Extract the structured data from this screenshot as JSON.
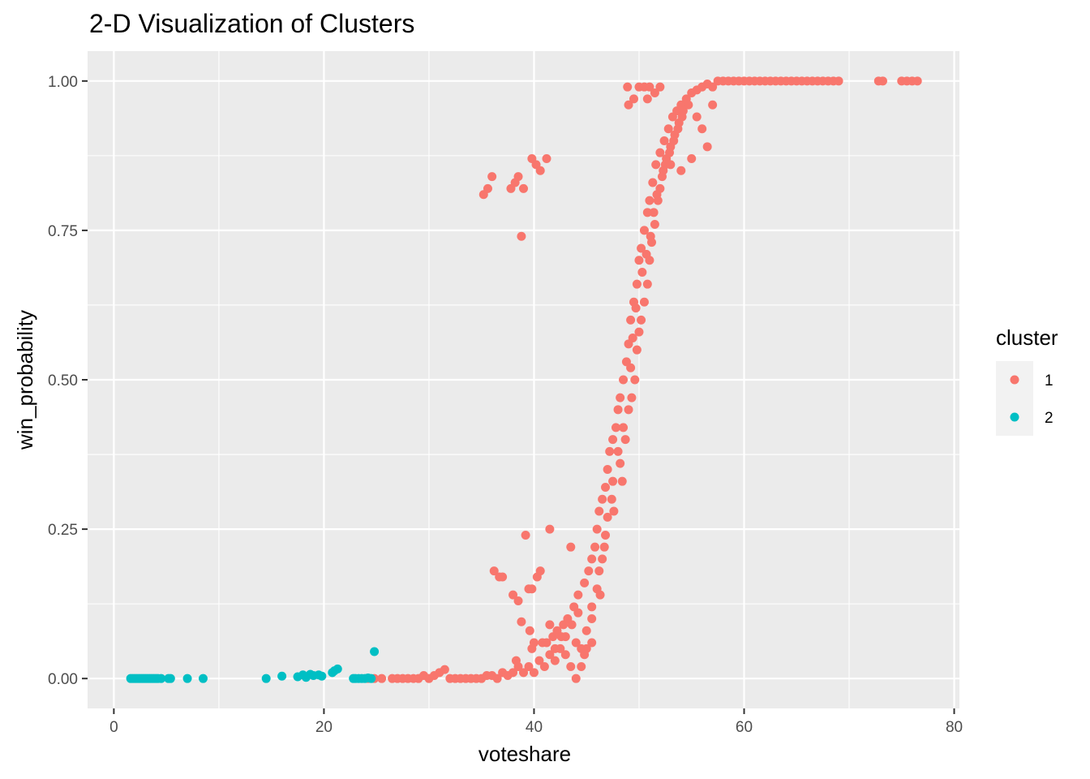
{
  "chart_data": {
    "type": "scatter",
    "title": "2-D Visualization of Clusters",
    "xlabel": "voteshare",
    "ylabel": "win_probability",
    "xlim": [
      -2.5,
      80.5
    ],
    "ylim": [
      -0.05,
      1.05
    ],
    "x_ticks": [
      0,
      20,
      40,
      60,
      80
    ],
    "x_tick_labels": [
      "0",
      "20",
      "40",
      "60",
      "80"
    ],
    "y_ticks": [
      0,
      0.25,
      0.5,
      0.75,
      1.0
    ],
    "y_tick_labels": [
      "0.00",
      "0.25",
      "0.50",
      "0.75",
      "1.00"
    ],
    "grid": true,
    "legend": {
      "title": "cluster",
      "position": "right"
    },
    "series": [
      {
        "name": "1",
        "color": "#F8766D",
        "points": [
          [
            24.2,
            0.0
          ],
          [
            24.8,
            0.0
          ],
          [
            25.5,
            0.0
          ],
          [
            26.5,
            0.0
          ],
          [
            27.0,
            0.0
          ],
          [
            27.5,
            0.0
          ],
          [
            28.0,
            0.0
          ],
          [
            28.5,
            0.0
          ],
          [
            29.0,
            0.0
          ],
          [
            29.5,
            0.005
          ],
          [
            30.0,
            0.0
          ],
          [
            30.5,
            0.005
          ],
          [
            31.0,
            0.01
          ],
          [
            31.5,
            0.015
          ],
          [
            32.0,
            0.0
          ],
          [
            32.5,
            0.0
          ],
          [
            33.0,
            0.0
          ],
          [
            33.5,
            0.0
          ],
          [
            34.0,
            0.0
          ],
          [
            34.5,
            0.0
          ],
          [
            35.0,
            0.0
          ],
          [
            35.5,
            0.005
          ],
          [
            36.0,
            0.005
          ],
          [
            36.5,
            0.0
          ],
          [
            37.0,
            0.01
          ],
          [
            37.5,
            0.005
          ],
          [
            38.0,
            0.01
          ],
          [
            38.5,
            0.02
          ],
          [
            39.0,
            0.01
          ],
          [
            39.5,
            0.02
          ],
          [
            40.0,
            0.01
          ],
          [
            40.5,
            0.03
          ],
          [
            41.0,
            0.02
          ],
          [
            41.5,
            0.04
          ],
          [
            42.0,
            0.03
          ],
          [
            42.5,
            0.05
          ],
          [
            43.0,
            0.04
          ],
          [
            43.5,
            0.02
          ],
          [
            44.0,
            0.06
          ],
          [
            44.5,
            0.05
          ],
          [
            45.0,
            0.08
          ],
          [
            38.3,
            0.03
          ],
          [
            39.8,
            0.05
          ],
          [
            40.8,
            0.06
          ],
          [
            41.8,
            0.07
          ],
          [
            42.8,
            0.09
          ],
          [
            43.2,
            0.1
          ],
          [
            43.8,
            0.12
          ],
          [
            44.2,
            0.14
          ],
          [
            44.8,
            0.16
          ],
          [
            45.2,
            0.18
          ],
          [
            45.5,
            0.2
          ],
          [
            45.8,
            0.22
          ],
          [
            46.0,
            0.25
          ],
          [
            46.2,
            0.28
          ],
          [
            46.5,
            0.3
          ],
          [
            46.8,
            0.32
          ],
          [
            47.0,
            0.35
          ],
          [
            47.2,
            0.38
          ],
          [
            47.5,
            0.4
          ],
          [
            47.8,
            0.42
          ],
          [
            48.0,
            0.45
          ],
          [
            48.2,
            0.47
          ],
          [
            48.5,
            0.5
          ],
          [
            48.8,
            0.53
          ],
          [
            49.0,
            0.56
          ],
          [
            49.2,
            0.6
          ],
          [
            49.5,
            0.63
          ],
          [
            49.8,
            0.66
          ],
          [
            50.0,
            0.7
          ],
          [
            50.2,
            0.72
          ],
          [
            50.5,
            0.75
          ],
          [
            50.8,
            0.78
          ],
          [
            51.0,
            0.8
          ],
          [
            51.3,
            0.83
          ],
          [
            51.6,
            0.86
          ],
          [
            52.0,
            0.88
          ],
          [
            52.4,
            0.9
          ],
          [
            52.8,
            0.92
          ],
          [
            53.2,
            0.94
          ],
          [
            53.6,
            0.95
          ],
          [
            54.0,
            0.96
          ],
          [
            54.5,
            0.97
          ],
          [
            55.0,
            0.98
          ],
          [
            55.5,
            0.985
          ],
          [
            56.0,
            0.99
          ],
          [
            56.5,
            0.995
          ],
          [
            57.0,
            0.99
          ],
          [
            57.5,
            1.0
          ],
          [
            58.0,
            1.0
          ],
          [
            58.5,
            1.0
          ],
          [
            59.0,
            1.0
          ],
          [
            59.5,
            1.0
          ],
          [
            60.0,
            1.0
          ],
          [
            60.5,
            1.0
          ],
          [
            61.0,
            1.0
          ],
          [
            61.5,
            1.0
          ],
          [
            62.0,
            1.0
          ],
          [
            62.5,
            1.0
          ],
          [
            63.0,
            1.0
          ],
          [
            63.5,
            1.0
          ],
          [
            64.0,
            1.0
          ],
          [
            64.5,
            1.0
          ],
          [
            65.0,
            1.0
          ],
          [
            65.5,
            1.0
          ],
          [
            66.0,
            1.0
          ],
          [
            66.5,
            1.0
          ],
          [
            67.0,
            1.0
          ],
          [
            67.5,
            1.0
          ],
          [
            68.0,
            1.0
          ],
          [
            68.5,
            1.0
          ],
          [
            69.0,
            1.0
          ],
          [
            72.8,
            1.0
          ],
          [
            73.2,
            1.0
          ],
          [
            75.0,
            1.0
          ],
          [
            75.5,
            1.0
          ],
          [
            76.0,
            1.0
          ],
          [
            76.5,
            1.0
          ],
          [
            44.0,
            0.0
          ],
          [
            44.5,
            0.02
          ],
          [
            45.0,
            0.05
          ],
          [
            45.5,
            0.1
          ],
          [
            46.0,
            0.15
          ],
          [
            46.5,
            0.2
          ],
          [
            47.0,
            0.27
          ],
          [
            47.5,
            0.33
          ],
          [
            48.0,
            0.38
          ],
          [
            48.5,
            0.42
          ],
          [
            49.0,
            0.45
          ],
          [
            49.3,
            0.47
          ],
          [
            49.6,
            0.5
          ],
          [
            49.8,
            0.55
          ],
          [
            50.0,
            0.58
          ],
          [
            50.2,
            0.6
          ],
          [
            50.5,
            0.63
          ],
          [
            50.8,
            0.66
          ],
          [
            51.0,
            0.7
          ],
          [
            51.2,
            0.73
          ],
          [
            51.5,
            0.76
          ],
          [
            51.8,
            0.8
          ],
          [
            52.0,
            0.82
          ],
          [
            52.3,
            0.85
          ],
          [
            52.6,
            0.87
          ],
          [
            53.0,
            0.89
          ],
          [
            53.4,
            0.91
          ],
          [
            53.8,
            0.93
          ],
          [
            54.2,
            0.95
          ],
          [
            54.7,
            0.96
          ],
          [
            45.5,
            0.12
          ],
          [
            46.2,
            0.18
          ],
          [
            46.8,
            0.24
          ],
          [
            47.4,
            0.3
          ],
          [
            48.2,
            0.36
          ],
          [
            48.7,
            0.4
          ],
          [
            49.2,
            0.52
          ],
          [
            49.4,
            0.57
          ],
          [
            49.7,
            0.62
          ],
          [
            50.3,
            0.68
          ],
          [
            50.7,
            0.71
          ],
          [
            51.1,
            0.74
          ],
          [
            51.4,
            0.78
          ],
          [
            51.7,
            0.81
          ],
          [
            52.2,
            0.84
          ],
          [
            52.5,
            0.86
          ],
          [
            52.9,
            0.88
          ],
          [
            53.3,
            0.9
          ],
          [
            53.7,
            0.92
          ],
          [
            54.1,
            0.94
          ],
          [
            48.9,
            0.99
          ],
          [
            49.0,
            0.96
          ],
          [
            50.0,
            0.99
          ],
          [
            50.5,
            0.99
          ],
          [
            51.0,
            0.99
          ],
          [
            51.5,
            0.98
          ],
          [
            52.0,
            0.99
          ],
          [
            50.8,
            0.97
          ],
          [
            49.5,
            0.97
          ],
          [
            35.2,
            0.81
          ],
          [
            35.6,
            0.82
          ],
          [
            36.0,
            0.84
          ],
          [
            37.8,
            0.82
          ],
          [
            38.2,
            0.83
          ],
          [
            38.5,
            0.84
          ],
          [
            38.8,
            0.74
          ],
          [
            39.0,
            0.82
          ],
          [
            39.8,
            0.87
          ],
          [
            40.2,
            0.86
          ],
          [
            40.6,
            0.85
          ],
          [
            41.2,
            0.87
          ],
          [
            53.0,
            0.86
          ],
          [
            54.0,
            0.85
          ],
          [
            55.0,
            0.87
          ],
          [
            56.5,
            0.89
          ],
          [
            56.0,
            0.92
          ],
          [
            55.5,
            0.94
          ],
          [
            57.0,
            0.96
          ],
          [
            39.2,
            0.24
          ],
          [
            41.5,
            0.25
          ],
          [
            43.5,
            0.22
          ],
          [
            36.2,
            0.18
          ],
          [
            36.7,
            0.17
          ],
          [
            37.0,
            0.17
          ],
          [
            38.0,
            0.14
          ],
          [
            38.5,
            0.13
          ],
          [
            38.8,
            0.095
          ],
          [
            39.5,
            0.15
          ],
          [
            39.8,
            0.15
          ],
          [
            40.3,
            0.17
          ],
          [
            40.6,
            0.18
          ],
          [
            39.6,
            0.08
          ],
          [
            40.0,
            0.06
          ],
          [
            41.5,
            0.09
          ],
          [
            42.2,
            0.08
          ],
          [
            43.0,
            0.07
          ],
          [
            44.2,
            0.11
          ],
          [
            43.6,
            0.09
          ],
          [
            42.0,
            0.05
          ],
          [
            42.6,
            0.07
          ],
          [
            41.2,
            0.06
          ],
          [
            44.8,
            0.04
          ],
          [
            45.5,
            0.06
          ],
          [
            46.3,
            0.14
          ],
          [
            46.7,
            0.22
          ],
          [
            47.6,
            0.28
          ],
          [
            48.4,
            0.33
          ]
        ]
      },
      {
        "name": "2",
        "color": "#00BFC4",
        "points": [
          [
            1.6,
            0.0
          ],
          [
            1.8,
            0.0
          ],
          [
            2.0,
            0.0
          ],
          [
            2.2,
            0.0
          ],
          [
            2.4,
            0.0
          ],
          [
            2.6,
            0.0
          ],
          [
            2.8,
            0.0
          ],
          [
            3.0,
            0.0
          ],
          [
            3.2,
            0.0
          ],
          [
            3.4,
            0.0
          ],
          [
            3.6,
            0.0
          ],
          [
            3.8,
            0.0
          ],
          [
            4.0,
            0.0
          ],
          [
            4.2,
            0.0
          ],
          [
            4.5,
            0.0
          ],
          [
            5.2,
            0.0
          ],
          [
            5.4,
            0.0
          ],
          [
            7.0,
            0.0
          ],
          [
            8.5,
            0.0
          ],
          [
            14.5,
            0.0
          ],
          [
            16.0,
            0.004
          ],
          [
            17.5,
            0.003
          ],
          [
            18.0,
            0.006
          ],
          [
            18.3,
            0.002
          ],
          [
            18.7,
            0.007
          ],
          [
            19.0,
            0.005
          ],
          [
            19.5,
            0.006
          ],
          [
            19.8,
            0.004
          ],
          [
            20.8,
            0.01
          ],
          [
            21.0,
            0.013
          ],
          [
            21.3,
            0.016
          ],
          [
            22.8,
            0.0
          ],
          [
            23.0,
            0.0
          ],
          [
            23.3,
            0.0
          ],
          [
            23.6,
            0.0
          ],
          [
            23.9,
            0.0
          ],
          [
            24.2,
            0.001
          ],
          [
            24.5,
            0.0
          ],
          [
            24.8,
            0.045
          ]
        ]
      }
    ]
  }
}
